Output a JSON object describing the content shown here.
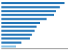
{
  "chart_data": {
    "type": "bar",
    "orientation": "horizontal",
    "categories": [
      null,
      null,
      null,
      null,
      null,
      null,
      null,
      null,
      null,
      null,
      null,
      null
    ],
    "values": [
      95,
      88,
      82,
      79,
      68,
      58,
      53,
      50,
      46,
      43,
      30,
      22
    ],
    "colors": [
      "#2b7bba",
      "#2b7bba",
      "#2b7bba",
      "#2b7bba",
      "#2b7bba",
      "#2b7bba",
      "#2b7bba",
      "#2b7bba",
      "#2b7bba",
      "#2b7bba",
      "#2b7bba",
      "#8dc6e8"
    ],
    "xlim": [
      0,
      100
    ],
    "tick_labels": false
  }
}
